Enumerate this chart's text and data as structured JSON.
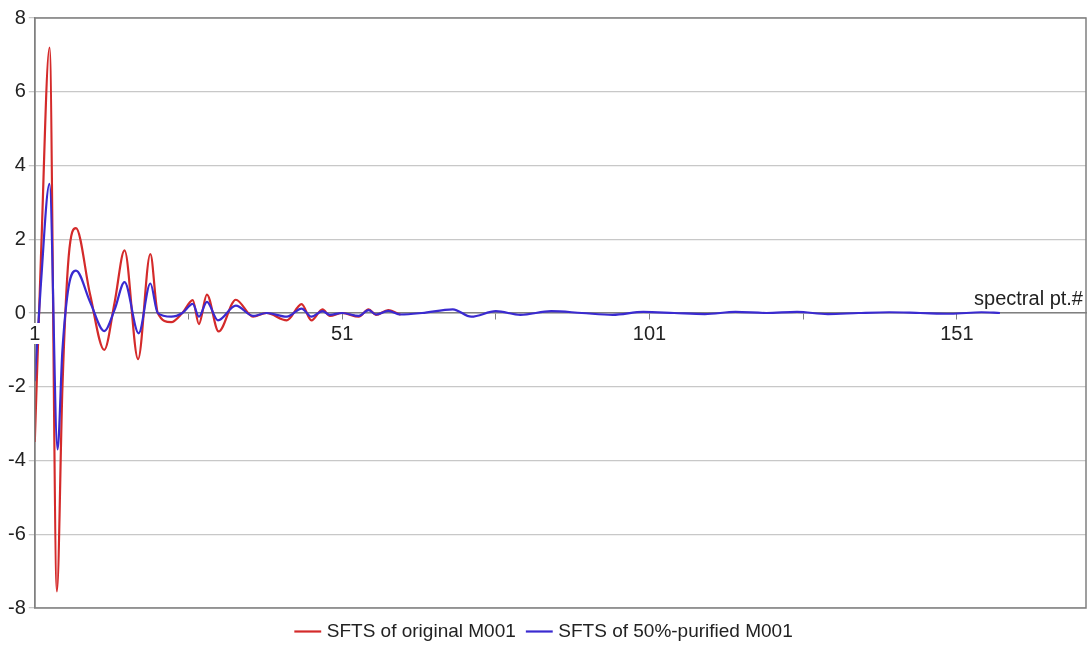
{
  "chart_data": {
    "type": "line",
    "xlabel": "spectral pt.#",
    "xlim": [
      1,
      172
    ],
    "xticks": [
      1,
      {
        "value": 26,
        "label": null
      },
      51,
      {
        "value": 76,
        "label": null
      },
      101,
      {
        "value": 126,
        "label": null
      },
      151
    ],
    "ylim": [
      -8,
      8
    ],
    "yticks": [
      -8,
      -6,
      -4,
      -2,
      0,
      2,
      4,
      6,
      8
    ],
    "grid": "y",
    "legend": "bottom",
    "marker": "none",
    "line_style": "solid",
    "series": [
      {
        "name": "SFTS of original M001",
        "color": "#d42a2a",
        "x": [
          1,
          2,
          3.4,
          4.6,
          5.5,
          6.5,
          7.7,
          10,
          12.3,
          14,
          15.6,
          17.8,
          19.8,
          21,
          23.2,
          25,
          26.7,
          27.7,
          29,
          30.9,
          33.7,
          36.5,
          38.7,
          42,
          44.4,
          46,
          47.8,
          49,
          51,
          53.7,
          55.3,
          56.5,
          58.5,
          60.5
        ],
        "values": [
          -3.5,
          1.5,
          7.2,
          -7.55,
          -2,
          1.5,
          2.3,
          0.5,
          -1.0,
          0.3,
          1.7,
          -1.25,
          1.6,
          0,
          -0.25,
          0,
          0.35,
          -0.3,
          0.5,
          -0.5,
          0.36,
          -0.1,
          0,
          -0.2,
          0.24,
          -0.2,
          0.1,
          -0.08,
          0,
          -0.1,
          0.1,
          -0.05,
          0.08,
          -0.05
        ]
      },
      {
        "name": "SFTS of 50%-purified M001",
        "color": "#3a2ad0",
        "x": [
          1,
          2,
          3.4,
          4.7,
          5.5,
          6.5,
          7.7,
          10,
          12.3,
          14,
          15.6,
          17.9,
          19.8,
          21,
          23.2,
          25,
          26.7,
          27.7,
          29,
          30.8,
          33.7,
          36.5,
          38.7,
          42,
          44.4,
          46,
          47.8,
          49,
          51,
          53.7,
          55.3,
          56.5,
          58.5,
          60.5,
          64,
          69,
          72,
          76,
          80,
          85,
          90,
          95,
          100,
          105,
          110,
          115,
          120,
          125,
          130,
          135,
          140,
          145,
          150,
          155,
          158
        ],
        "values": [
          -1.85,
          0.8,
          3.5,
          -3.7,
          -1,
          0.7,
          1.15,
          0.3,
          -0.49,
          0.1,
          0.84,
          -0.55,
          0.8,
          0,
          -0.1,
          0,
          0.25,
          -0.1,
          0.3,
          -0.2,
          0.2,
          -0.08,
          0,
          -0.1,
          0.12,
          -0.1,
          0.05,
          -0.05,
          0,
          -0.08,
          0.08,
          -0.04,
          0.06,
          -0.04,
          0,
          0.1,
          -0.1,
          0.05,
          -0.05,
          0.05,
          0,
          -0.05,
          0.03,
          0,
          -0.03,
          0.03,
          0,
          0.03,
          -0.03,
          0,
          0.02,
          0,
          -0.02,
          0.02,
          0
        ]
      }
    ]
  }
}
